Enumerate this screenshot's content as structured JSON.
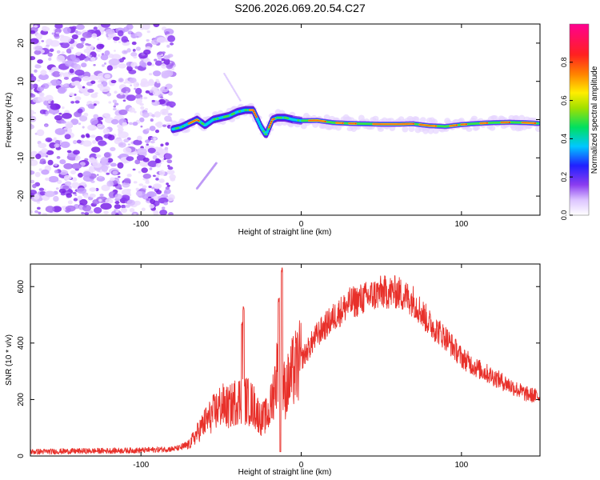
{
  "title": "S206.2026.069.20.54.C27",
  "chart_data": [
    {
      "type": "heatmap",
      "title": "S206.2026.069.20.54.C27",
      "xlabel": "Height of straight line (km)",
      "ylabel": "Frequency (Hz)",
      "xlim": [
        -169,
        149
      ],
      "ylim": [
        -25,
        25
      ],
      "xticks": [
        -100,
        0,
        100
      ],
      "yticks": [
        -20,
        -10,
        0,
        10,
        20
      ],
      "colorbar": {
        "label": "Normalized spectral amplitude",
        "range": [
          0,
          1
        ],
        "ticks": [
          "0.0",
          "0.2",
          "0.4",
          "0.6",
          "0.8"
        ],
        "colors": [
          "#ffffff",
          "#dcc4ff",
          "#8a3cf0",
          "#2020ff",
          "#00c8ff",
          "#00e060",
          "#a0e000",
          "#ffee00",
          "#ff8000",
          "#ff2020",
          "#ff0090"
        ]
      },
      "ridge": {
        "x": [
          -80,
          -75,
          -70,
          -65,
          -60,
          -55,
          -50,
          -45,
          -40,
          -35,
          -30,
          -25,
          -22,
          -18,
          -15,
          -10,
          -5,
          0,
          10,
          20,
          30,
          40,
          50,
          60,
          70,
          80,
          90,
          100,
          110,
          120,
          130,
          140,
          148
        ],
        "y": [
          -2.5,
          -2,
          -1,
          0,
          -1.5,
          0,
          0.5,
          1,
          2,
          2.5,
          2.5,
          -2,
          -4,
          0,
          0.5,
          0.5,
          0,
          -0.3,
          -0.2,
          -0.8,
          -1,
          -1.1,
          -1.2,
          -1.2,
          -1.1,
          -1.6,
          -1.8,
          -1.3,
          -1,
          -0.8,
          -0.7,
          -0.8,
          -1
        ]
      },
      "noise_region": "x < -80"
    },
    {
      "type": "line",
      "title": "",
      "xlabel": "Height of straight line (km)",
      "ylabel": "SNR (10 * v/v)",
      "xlim": [
        -169,
        149
      ],
      "ylim": [
        0,
        680
      ],
      "xticks": [
        -100,
        0,
        100
      ],
      "yticks": [
        0,
        200,
        400,
        600
      ],
      "color": "#e8302a",
      "envelope": {
        "x": [
          -169,
          -100,
          -80,
          -75,
          -70,
          -65,
          -60,
          -55,
          -50,
          -45,
          -40,
          -35,
          -30,
          -25,
          -20,
          -15,
          -10,
          -5,
          0,
          10,
          20,
          30,
          40,
          50,
          60,
          70,
          80,
          90,
          100,
          110,
          120,
          130,
          140,
          149
        ],
        "y": [
          15,
          20,
          25,
          30,
          40,
          80,
          120,
          150,
          180,
          170,
          200,
          200,
          180,
          130,
          150,
          300,
          230,
          300,
          340,
          430,
          490,
          540,
          560,
          580,
          580,
          550,
          470,
          420,
          350,
          310,
          280,
          250,
          220,
          210
        ]
      },
      "spikes": [
        {
          "x": -36,
          "y": 530
        },
        {
          "x": -12,
          "y": 670
        },
        {
          "x": -37,
          "y": 480
        },
        {
          "x": -14,
          "y": 560
        }
      ]
    }
  ]
}
